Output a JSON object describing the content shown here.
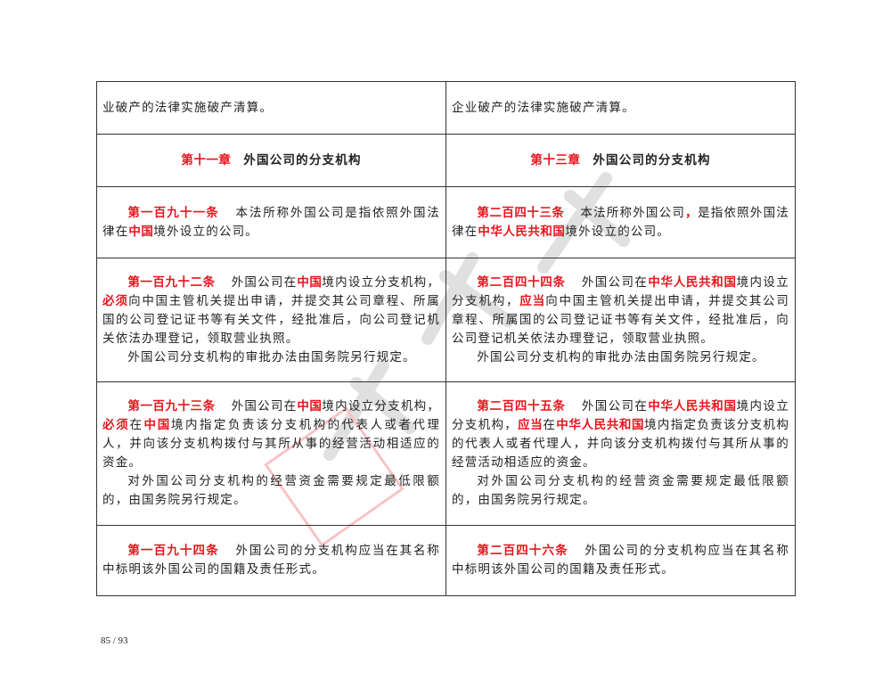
{
  "rows": [
    {
      "left": [
        [
          {
            "t": "业破产的法律实施破产清算。"
          }
        ]
      ],
      "right": [
        [
          {
            "t": "企业破产的法律实施破产清算。"
          }
        ]
      ],
      "noindent": true
    },
    {
      "chapter": true,
      "left": [
        [
          {
            "t": "第十一章",
            "r": true
          },
          {
            "t": "外国公司的分支机构"
          }
        ]
      ],
      "right": [
        [
          {
            "t": "第十三章",
            "r": true
          },
          {
            "t": "外国公司的分支机构"
          }
        ]
      ]
    },
    {
      "left": [
        [
          {
            "t": "第一百九十一条",
            "r": true,
            "g": true
          },
          {
            "t": "本法所称外国公司是指依照外国法律在"
          },
          {
            "t": "中国",
            "r": true
          },
          {
            "t": "境外设立的公司。"
          }
        ]
      ],
      "right": [
        [
          {
            "t": "第二百四十三条",
            "r": true,
            "g": true
          },
          {
            "t": "本法所称外国公司"
          },
          {
            "t": "，",
            "r": true
          },
          {
            "t": "是指依照外国法律在"
          },
          {
            "t": "中华人民共和国",
            "r": true
          },
          {
            "t": "境外设立的公司。"
          }
        ]
      ]
    },
    {
      "left": [
        [
          {
            "t": "第一百九十二条",
            "r": true,
            "g": true
          },
          {
            "t": "外国公司在"
          },
          {
            "t": "中国",
            "r": true
          },
          {
            "t": "境内设立分支机构，"
          },
          {
            "t": "必须",
            "r": true
          },
          {
            "t": "向中国主管机关提出申请，并提交其公司章程、所属国的公司登记证书等有关文件，经批准后，向公司登记机关依法办理登记，领取营业执照。"
          }
        ],
        [
          {
            "t": "外国公司分支机构的审批办法由国务院另行规定。"
          }
        ]
      ],
      "right": [
        [
          {
            "t": "第二百四十四条",
            "r": true,
            "g": true
          },
          {
            "t": "外国公司在"
          },
          {
            "t": "中华人民共和国",
            "r": true
          },
          {
            "t": "境内设立分支机构，"
          },
          {
            "t": "应当",
            "r": true
          },
          {
            "t": "向中国主管机关提出申请，并提交其公司章程、所属国的公司登记证书等有关文件，经批准后，向公司登记机关依法办理登记，领取营业执照。"
          }
        ],
        [
          {
            "t": "外国公司分支机构的审批办法由国务院另行规定。"
          }
        ]
      ]
    },
    {
      "left": [
        [
          {
            "t": "第一百九十三条",
            "r": true,
            "g": true
          },
          {
            "t": "外国公司在"
          },
          {
            "t": "中国",
            "r": true
          },
          {
            "t": "境内设立分支机构，"
          },
          {
            "t": "必须",
            "r": true
          },
          {
            "t": "在"
          },
          {
            "t": "中国",
            "r": true
          },
          {
            "t": "境内指定负责该分支机构的代表人或者代理人，并向该分支机构拨付与其所从事的经营活动相适应的资金。"
          }
        ],
        [
          {
            "t": "对外国公司分支机构的经营资金需要规定最低限额的，由国务院另行规定。"
          }
        ]
      ],
      "right": [
        [
          {
            "t": "第二百四十五条",
            "r": true,
            "g": true
          },
          {
            "t": "外国公司在"
          },
          {
            "t": "中华人民共和国",
            "r": true
          },
          {
            "t": "境内设立分支机构，"
          },
          {
            "t": "应当",
            "r": true
          },
          {
            "t": "在"
          },
          {
            "t": "中华人民共和国",
            "r": true
          },
          {
            "t": "境内指定负责该分支机构的代表人或者代理人，并向该分支机构拨付与其所从事的经营活动相适应的资金。"
          }
        ],
        [
          {
            "t": "对外国公司分支机构的经营资金需要规定最低限额的，由国务院另行规定。"
          }
        ]
      ]
    },
    {
      "left": [
        [
          {
            "t": "第一百九十四条",
            "r": true,
            "g": true
          },
          {
            "t": "外国公司的分支机构应当在其名称中标明该外国公司的国籍及责任形式。"
          }
        ]
      ],
      "right": [
        [
          {
            "t": "第二百四十六条",
            "r": true,
            "g": true
          },
          {
            "t": "外国公司的分支机构应当在其名称中标明该外国公司的国籍及责任形式。"
          }
        ]
      ]
    }
  ],
  "row_heights": [
    59,
    59,
    80,
    139,
    161,
    79
  ],
  "page_number": "85 / 93",
  "colors": {
    "highlight": "#e8141c",
    "text": "#222222",
    "border": "#333333",
    "stamp": "#e8141c"
  }
}
